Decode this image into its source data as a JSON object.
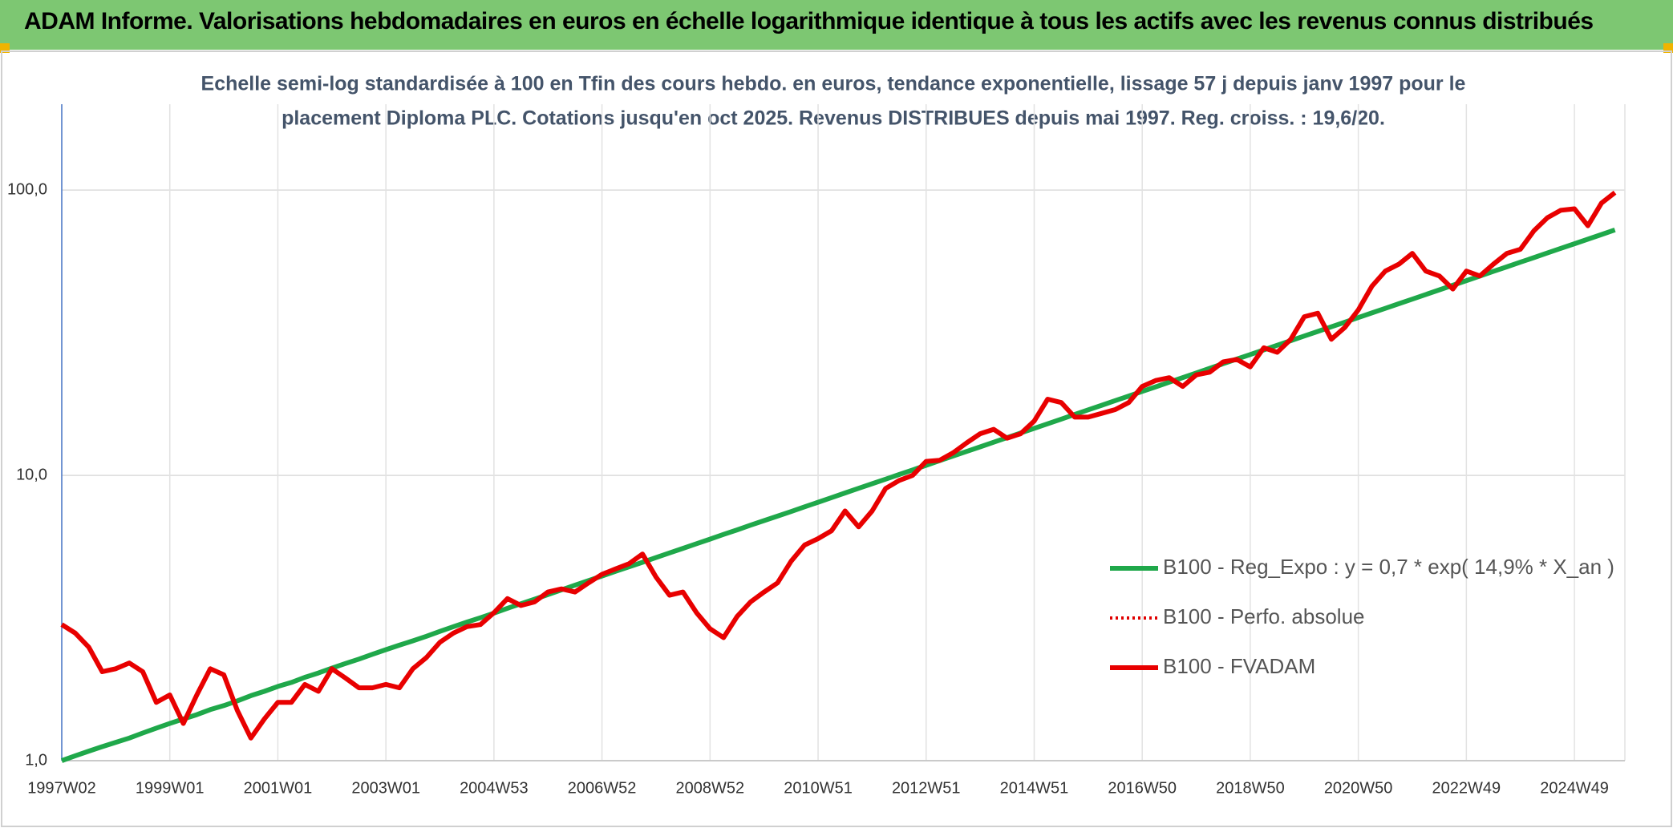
{
  "header": {
    "title": "ADAM Informe. Valorisations hebdomadaires en euros en échelle logarithmique identique à tous les actifs avec les revenus connus distribués"
  },
  "chart_data": {
    "type": "line",
    "subtitle": [
      "Echelle semi-log standardisée à 100 en Tfin des cours hebdo. en euros, tendance exponentielle, lissage 57 j depuis janv 1997 pour le",
      "placement Diploma PLC. Cotations jusqu'en oct 2025. Revenus DISTRIBUES depuis mai 1997. Reg. croiss. : 19,6/20."
    ],
    "log_scale": true,
    "grid": true,
    "legend": "right",
    "ylim": [
      1,
      200
    ],
    "yticks": [
      {
        "value": 1,
        "label": "1,0"
      },
      {
        "value": 10,
        "label": "10,0"
      },
      {
        "value": 100,
        "label": "100,0"
      }
    ],
    "categories": [
      "1997W02",
      null,
      null,
      null,
      null,
      null,
      null,
      null,
      "1999W01",
      null,
      null,
      null,
      null,
      null,
      null,
      null,
      "2001W01",
      null,
      null,
      null,
      null,
      null,
      null,
      null,
      "2003W01",
      null,
      null,
      null,
      null,
      null,
      null,
      null,
      "2004W53",
      null,
      null,
      null,
      null,
      null,
      null,
      null,
      "2006W52",
      null,
      null,
      null,
      null,
      null,
      null,
      null,
      "2008W52",
      null,
      null,
      null,
      null,
      null,
      null,
      null,
      "2010W51",
      null,
      null,
      null,
      null,
      null,
      null,
      null,
      "2012W51",
      null,
      null,
      null,
      null,
      null,
      null,
      null,
      "2014W51",
      null,
      null,
      null,
      null,
      null,
      null,
      null,
      "2016W50",
      null,
      null,
      null,
      null,
      null,
      null,
      null,
      "2018W50",
      null,
      null,
      null,
      null,
      null,
      null,
      null,
      "2020W50",
      null,
      null,
      null,
      null,
      null,
      null,
      null,
      "2022W49",
      null,
      null,
      null,
      null,
      null,
      null,
      null,
      "2024W49",
      null,
      null,
      null
    ],
    "series": [
      {
        "name": "B100 - Reg_Expo : y = 0,7 * exp( 14,9% *  X_an )",
        "color": "#1fa84a",
        "dash": "solid",
        "values": [
          1.0,
          1.04,
          1.08,
          1.12,
          1.16,
          1.2,
          1.25,
          1.3,
          1.35,
          1.4,
          1.45,
          1.51,
          1.56,
          1.62,
          1.69,
          1.75,
          1.82,
          1.88,
          1.96,
          2.03,
          2.11,
          2.19,
          2.27,
          2.36,
          2.45,
          2.54,
          2.63,
          2.73,
          2.84,
          2.95,
          3.06,
          3.17,
          3.29,
          3.42,
          3.55,
          3.68,
          3.82,
          3.97,
          4.12,
          4.28,
          4.44,
          4.61,
          4.78,
          4.96,
          5.15,
          5.35,
          5.55,
          5.76,
          5.98,
          6.21,
          6.44,
          6.69,
          6.94,
          7.2,
          7.47,
          7.76,
          8.05,
          8.36,
          8.68,
          9.01,
          9.35,
          9.7,
          10.07,
          10.45,
          10.85,
          11.26,
          11.69,
          12.13,
          12.59,
          13.07,
          13.57,
          14.08,
          14.62,
          15.17,
          15.75,
          16.35,
          16.97,
          17.61,
          18.28,
          18.97,
          19.69,
          20.44,
          21.22,
          22.02,
          22.86,
          23.73,
          24.63,
          25.56,
          26.53,
          27.54,
          28.58,
          29.67,
          30.79,
          31.96,
          33.17,
          34.43,
          35.74,
          37.1,
          38.5,
          39.96,
          41.48,
          43.05,
          44.69,
          46.38,
          48.14,
          49.97,
          51.87,
          53.83,
          55.87,
          57.99,
          60.19,
          62.48,
          64.85,
          67.3,
          69.86,
          72.51
        ]
      },
      {
        "name": "B100 - Perfo. absolue",
        "color": "#e00000",
        "dash": "dotted",
        "values": [
          null,
          null,
          null,
          null,
          null,
          null,
          null,
          null,
          null,
          null,
          null,
          null,
          null,
          null,
          null,
          null,
          null,
          null,
          null,
          null,
          null,
          null,
          null,
          null,
          null,
          null,
          null,
          null,
          null,
          null,
          null,
          null,
          null,
          null,
          null,
          null,
          null,
          null,
          null,
          null,
          null,
          null,
          null,
          null,
          null,
          null,
          null,
          null,
          null,
          null,
          null,
          null,
          null,
          null,
          null,
          null,
          null,
          null,
          null,
          null,
          null,
          null,
          null,
          null,
          null,
          null,
          null,
          null,
          null,
          null,
          null,
          null,
          null,
          null,
          null,
          null,
          null,
          null,
          null,
          null,
          null,
          null,
          null,
          null,
          null,
          null,
          null,
          null,
          null,
          null,
          null,
          null,
          null,
          null,
          null,
          null,
          null,
          null,
          null,
          null,
          null,
          null,
          null,
          null,
          null,
          null,
          null,
          null,
          null,
          null,
          null,
          null,
          null,
          null,
          null,
          null
        ]
      },
      {
        "name": "B100 - FVADAM",
        "color": "#e80000",
        "dash": "solid",
        "values": [
          3.0,
          2.8,
          2.5,
          2.05,
          2.1,
          2.2,
          2.05,
          1.6,
          1.7,
          1.35,
          1.7,
          2.1,
          2.0,
          1.5,
          1.2,
          1.4,
          1.6,
          1.6,
          1.85,
          1.75,
          2.1,
          1.95,
          1.8,
          1.8,
          1.85,
          1.8,
          2.1,
          2.3,
          2.6,
          2.8,
          2.95,
          3.0,
          3.3,
          3.7,
          3.5,
          3.6,
          3.9,
          4.0,
          3.9,
          4.2,
          4.5,
          4.7,
          4.9,
          5.3,
          4.4,
          3.8,
          3.9,
          3.3,
          2.9,
          2.7,
          3.2,
          3.6,
          3.9,
          4.2,
          5.0,
          5.7,
          6.0,
          6.4,
          7.5,
          6.6,
          7.5,
          9.0,
          9.6,
          10.0,
          11.2,
          11.3,
          12.0,
          13.0,
          14.0,
          14.5,
          13.5,
          14.0,
          15.5,
          18.5,
          18.0,
          16.0,
          16.0,
          16.5,
          17.0,
          18.0,
          20.5,
          21.5,
          22.0,
          20.5,
          22.5,
          23.0,
          25.0,
          25.5,
          24.0,
          28.0,
          27.0,
          30.0,
          36.0,
          37.0,
          30.0,
          33.0,
          38.0,
          46.0,
          52.0,
          55.0,
          60.0,
          52.0,
          50.0,
          45.0,
          52.0,
          50.0,
          55.0,
          60.0,
          62.0,
          72.0,
          80.0,
          85.0,
          86.0,
          75.0,
          90.0,
          98.0
        ]
      }
    ]
  }
}
